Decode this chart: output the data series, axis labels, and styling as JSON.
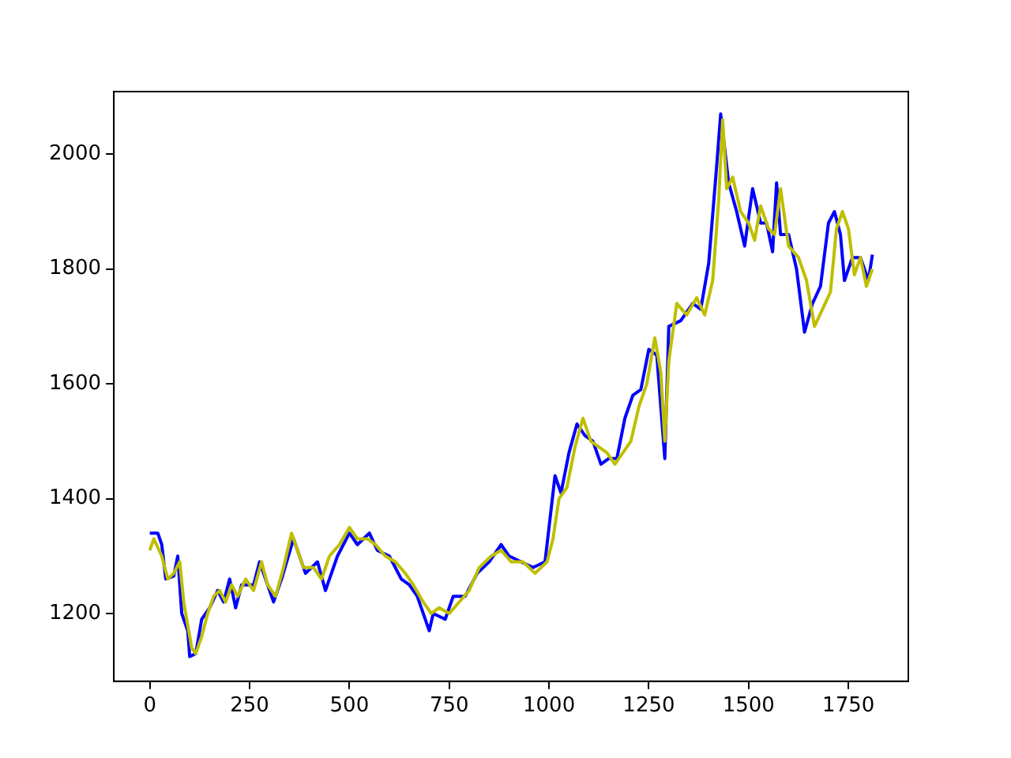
{
  "chart_data": {
    "type": "line",
    "xlim": [
      -90,
      1900
    ],
    "ylim": [
      1082,
      2109
    ],
    "xticks": [
      0,
      250,
      500,
      750,
      1000,
      1250,
      1500,
      1750
    ],
    "yticks": [
      1200,
      1400,
      1600,
      1800,
      2000
    ],
    "grid": false,
    "legend": false,
    "marker": "none",
    "line_style": "solid",
    "series": [
      {
        "color": "#0000ff",
        "x": [
          0,
          20,
          30,
          40,
          60,
          70,
          80,
          95,
          100,
          115,
          130,
          150,
          170,
          185,
          200,
          215,
          230,
          260,
          275,
          290,
          310,
          330,
          360,
          375,
          390,
          420,
          440,
          470,
          500,
          520,
          550,
          570,
          600,
          630,
          650,
          670,
          700,
          710,
          740,
          760,
          790,
          820,
          850,
          880,
          900,
          930,
          960,
          990,
          1000,
          1015,
          1030,
          1050,
          1070,
          1090,
          1110,
          1130,
          1150,
          1170,
          1190,
          1210,
          1230,
          1250,
          1270,
          1290,
          1300,
          1330,
          1360,
          1380,
          1400,
          1420,
          1430,
          1450,
          1470,
          1490,
          1510,
          1530,
          1545,
          1560,
          1570,
          1580,
          1600,
          1620,
          1640,
          1660,
          1680,
          1700,
          1715,
          1730,
          1740,
          1760,
          1780,
          1800,
          1810
        ],
        "values": [
          1340,
          1340,
          1320,
          1260,
          1265,
          1300,
          1200,
          1170,
          1125,
          1130,
          1190,
          1210,
          1240,
          1220,
          1260,
          1210,
          1250,
          1250,
          1290,
          1260,
          1220,
          1260,
          1330,
          1300,
          1270,
          1290,
          1240,
          1300,
          1340,
          1320,
          1340,
          1310,
          1300,
          1260,
          1250,
          1230,
          1170,
          1200,
          1190,
          1230,
          1230,
          1270,
          1290,
          1320,
          1300,
          1290,
          1280,
          1290,
          1350,
          1440,
          1410,
          1480,
          1530,
          1510,
          1500,
          1460,
          1470,
          1470,
          1540,
          1580,
          1590,
          1660,
          1650,
          1470,
          1700,
          1710,
          1740,
          1730,
          1810,
          1980,
          2070,
          1950,
          1900,
          1840,
          1940,
          1880,
          1880,
          1830,
          1950,
          1860,
          1860,
          1800,
          1690,
          1740,
          1770,
          1880,
          1900,
          1860,
          1780,
          1820,
          1820,
          1780,
          1825
        ]
      },
      {
        "color": "#bfbf00",
        "x": [
          0,
          10,
          20,
          30,
          45,
          60,
          75,
          85,
          95,
          105,
          115,
          130,
          145,
          160,
          175,
          190,
          205,
          220,
          240,
          260,
          280,
          295,
          315,
          335,
          355,
          370,
          385,
          410,
          430,
          450,
          475,
          500,
          520,
          545,
          565,
          590,
          615,
          640,
          660,
          685,
          705,
          725,
          750,
          775,
          800,
          825,
          855,
          880,
          905,
          935,
          965,
          995,
          1010,
          1025,
          1045,
          1065,
          1085,
          1105,
          1125,
          1145,
          1165,
          1185,
          1205,
          1225,
          1245,
          1265,
          1280,
          1290,
          1300,
          1320,
          1345,
          1370,
          1390,
          1410,
          1425,
          1435,
          1445,
          1460,
          1480,
          1500,
          1515,
          1530,
          1550,
          1565,
          1580,
          1600,
          1625,
          1645,
          1665,
          1685,
          1705,
          1720,
          1735,
          1750,
          1765,
          1780,
          1795,
          1810
        ],
        "values": [
          1310,
          1330,
          1315,
          1300,
          1260,
          1270,
          1290,
          1220,
          1180,
          1140,
          1130,
          1160,
          1200,
          1230,
          1240,
          1220,
          1250,
          1230,
          1260,
          1240,
          1290,
          1250,
          1230,
          1280,
          1340,
          1310,
          1280,
          1280,
          1260,
          1300,
          1320,
          1350,
          1330,
          1330,
          1320,
          1300,
          1290,
          1270,
          1250,
          1220,
          1200,
          1210,
          1200,
          1220,
          1240,
          1280,
          1300,
          1310,
          1290,
          1290,
          1270,
          1290,
          1330,
          1400,
          1420,
          1490,
          1540,
          1500,
          1490,
          1480,
          1460,
          1480,
          1500,
          1560,
          1600,
          1680,
          1620,
          1500,
          1640,
          1740,
          1720,
          1750,
          1720,
          1780,
          1920,
          2060,
          1940,
          1960,
          1900,
          1880,
          1850,
          1910,
          1870,
          1860,
          1940,
          1840,
          1820,
          1780,
          1700,
          1730,
          1760,
          1870,
          1900,
          1870,
          1790,
          1820,
          1770,
          1800
        ]
      }
    ]
  }
}
